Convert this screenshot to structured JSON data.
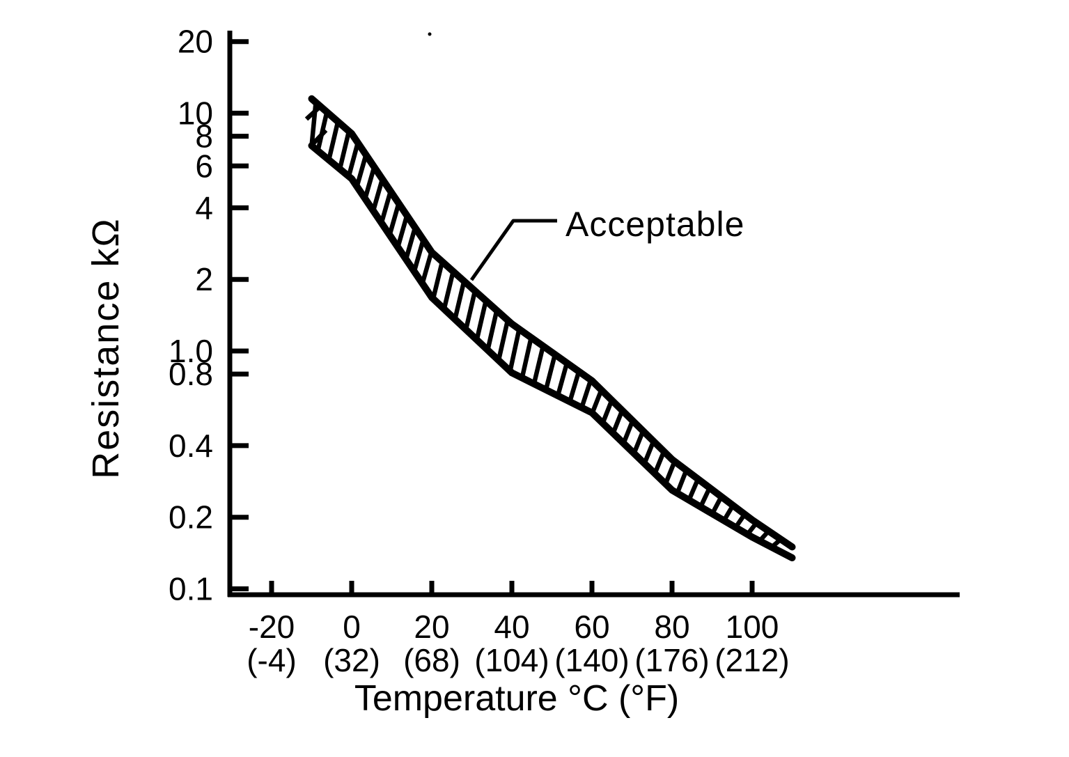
{
  "figure": {
    "background": "#ffffff",
    "ink_color": "#000000"
  },
  "chart_data": {
    "type": "area",
    "title": "",
    "xlabel": "Temperature °C (°F)",
    "ylabel": "Resistance kΩ",
    "y_scale": "log",
    "ylim": [
      0.1,
      20
    ],
    "x_tick_range": [
      -20,
      100
    ],
    "grid": false,
    "legend_position": "none",
    "annotation": "Acceptable",
    "band_style": "hatched band between upper and lower limit curves",
    "y_ticks": [
      {
        "v": 20,
        "t": "20"
      },
      {
        "v": 10,
        "t": "10"
      },
      {
        "v": 8,
        "t": "8"
      },
      {
        "v": 6,
        "t": "6"
      },
      {
        "v": 4,
        "t": "4"
      },
      {
        "v": 2,
        "t": "2"
      },
      {
        "v": 1.0,
        "t": "1.0"
      },
      {
        "v": 0.8,
        "t": "0.8"
      },
      {
        "v": 0.4,
        "t": "0.4"
      },
      {
        "v": 0.2,
        "t": "0.2"
      },
      {
        "v": 0.1,
        "t": "0.1"
      }
    ],
    "x_ticks": [
      {
        "v": -20,
        "c": "-20",
        "f": "(-4)"
      },
      {
        "v": 0,
        "c": "0",
        "f": "(32)"
      },
      {
        "v": 20,
        "c": "20",
        "f": "(68)"
      },
      {
        "v": 40,
        "c": "40",
        "f": "(104)"
      },
      {
        "v": 60,
        "c": "60",
        "f": "(140)"
      },
      {
        "v": 80,
        "c": "80",
        "f": "(176)"
      },
      {
        "v": 100,
        "c": "100",
        "f": "(212)"
      }
    ],
    "x": [
      -10,
      0,
      20,
      40,
      60,
      80,
      100,
      110
    ],
    "series": [
      {
        "name": "upper acceptable limit",
        "unit": "kΩ",
        "values": [
          11.5,
          8.2,
          2.6,
          1.3,
          0.75,
          0.35,
          0.195,
          0.15
        ]
      },
      {
        "name": "lower acceptable limit",
        "unit": "kΩ",
        "values": [
          7.3,
          5.3,
          1.68,
          0.81,
          0.55,
          0.26,
          0.165,
          0.135
        ]
      }
    ]
  }
}
